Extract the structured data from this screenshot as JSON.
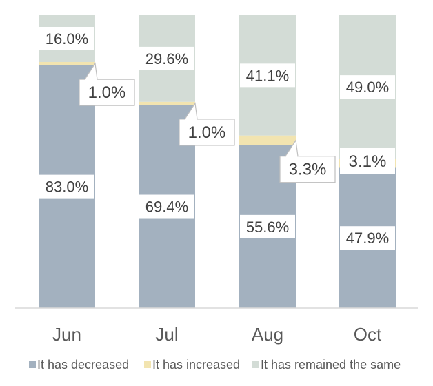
{
  "chart_data": {
    "type": "bar",
    "stacked": true,
    "percent": true,
    "categories": [
      "Jun",
      "Jul",
      "Aug",
      "Oct"
    ],
    "series": [
      {
        "name": "It has decreased",
        "values": [
          83.0,
          69.4,
          55.6,
          47.9
        ],
        "labels": [
          "83.0%",
          "69.4%",
          "55.6%",
          "47.9%"
        ],
        "color": "#a3b1bf"
      },
      {
        "name": "It has increased",
        "values": [
          1.0,
          1.0,
          3.3,
          3.1
        ],
        "labels": [
          "1.0%",
          "1.0%",
          "3.3%",
          "3.1%"
        ],
        "color": "#f2e4b0"
      },
      {
        "name": "It has remained the same",
        "values": [
          16.0,
          29.6,
          41.1,
          49.0
        ],
        "labels": [
          "16.0%",
          "29.6%",
          "41.1%",
          "49.0%"
        ],
        "color": "#d3dcd6"
      }
    ],
    "ylim": [
      0,
      100
    ],
    "grid": false,
    "legend": "bottom"
  }
}
